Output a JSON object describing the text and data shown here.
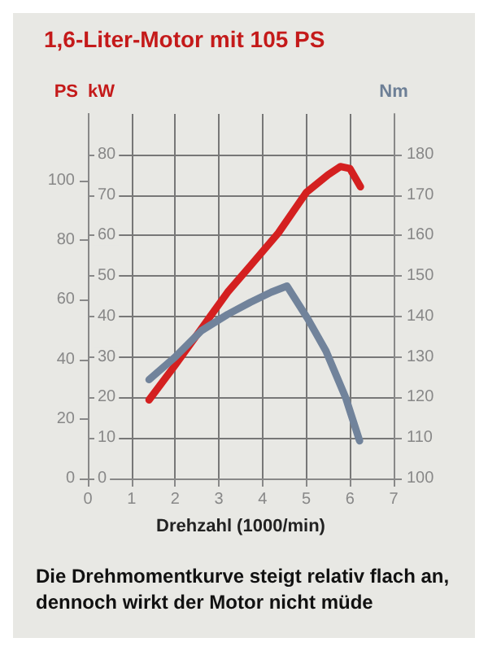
{
  "chart_data": {
    "type": "line",
    "title": "1,6-Liter-Motor mit 105 PS",
    "xlabel": "Drehzahl (1000/min)",
    "ylabel": "kW",
    "y2label": "Nm",
    "y3label": "PS",
    "annotations": [
      "Die Drehmomentkurve steigt relativ flach an, dennoch wirkt der Motor nicht müde"
    ],
    "xlim": [
      0,
      7
    ],
    "xticks": [
      0,
      1,
      2,
      3,
      4,
      5,
      6,
      7
    ],
    "ylim": [
      0,
      90
    ],
    "yticks": [
      0,
      10,
      20,
      30,
      40,
      50,
      60,
      70,
      80
    ],
    "y2lim": [
      100,
      190
    ],
    "y2ticks": [
      100,
      110,
      120,
      130,
      140,
      150,
      160,
      170,
      180
    ],
    "y3lim": [
      0,
      122.4
    ],
    "y3ticks": [
      0,
      20,
      40,
      60,
      80,
      100
    ],
    "grid": true,
    "series": [
      {
        "color": "#d42020",
        "x": [
          1.4,
          2.0,
          2.6,
          3.2,
          3.72,
          4.36,
          5.0,
          5.5,
          5.78,
          6.0,
          6.24
        ],
        "values": [
          19.4,
          28,
          37,
          46,
          52.5,
          60.6,
          70.6,
          75,
          77,
          76.5,
          72
        ]
      },
      {
        "color": "#71839b",
        "axis": "y2",
        "x": [
          1.4,
          2.0,
          2.6,
          3.2,
          3.72,
          4.2,
          4.56,
          5.03,
          5.45,
          5.9,
          6.22
        ],
        "values": [
          124.4,
          130,
          136.5,
          140.5,
          143.5,
          146,
          147.5,
          139.5,
          131.5,
          120,
          109.3
        ]
      }
    ]
  }
}
